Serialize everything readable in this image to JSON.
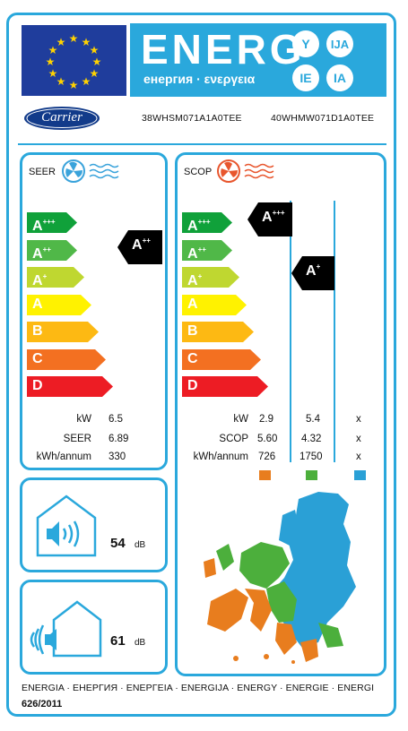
{
  "header": {
    "energy_word": "ENERG",
    "subtitle": "енергия · ενεργεια",
    "language_badges": [
      "Y",
      "IJA",
      "IE",
      "IA"
    ]
  },
  "supplier": {
    "logo_text": "Carrier",
    "indoor_model": "38WHSM071A1A0TEE",
    "outdoor_model": "40WHMW071D1A0TEE"
  },
  "cooling": {
    "label": "SEER",
    "classes": [
      "A+++",
      "A++",
      "A+",
      "A",
      "B",
      "C",
      "D"
    ],
    "rating": "A++",
    "rows": [
      {
        "label": "kW",
        "value": "6.5"
      },
      {
        "label": "SEER",
        "value": "6.89"
      },
      {
        "label": "kWh/annum",
        "value": "330"
      }
    ]
  },
  "heating": {
    "label": "SCOP",
    "classes": [
      "A+++",
      "A++",
      "A+",
      "A",
      "B",
      "C",
      "D"
    ],
    "ratings": [
      {
        "zone": "warmer",
        "class": "A+++"
      },
      {
        "zone": "average",
        "class": "A+"
      }
    ],
    "rows": [
      {
        "label": "kW",
        "warmer": "2.9",
        "average": "5.4",
        "colder": "x"
      },
      {
        "label": "SCOP",
        "warmer": "5.60",
        "average": "4.32",
        "colder": "x"
      },
      {
        "label": "kWh/annum",
        "warmer": "726",
        "average": "1750",
        "colder": "x"
      }
    ],
    "zone_colors": {
      "warmer": "#e87d1e",
      "average": "#4caf3c",
      "colder": "#2aa0d6"
    }
  },
  "noise": {
    "indoor": {
      "value": "54",
      "unit": "dB"
    },
    "outdoor": {
      "value": "61",
      "unit": "dB"
    }
  },
  "footer": {
    "languages": "ENERGIA · ЕНЕРГИЯ · ΕΝΕΡΓΕΙΑ · ENERGIJA · ENERGY · ENERGIE · ENERGI",
    "regulation": "626/2011"
  },
  "colors": {
    "frame": "#2aa8dc",
    "eu_blue": "#1f3d9c",
    "class_colors": [
      "#10a13a",
      "#50b848",
      "#bfd730",
      "#fff200",
      "#fdb913",
      "#f37021",
      "#ed1c24"
    ]
  }
}
